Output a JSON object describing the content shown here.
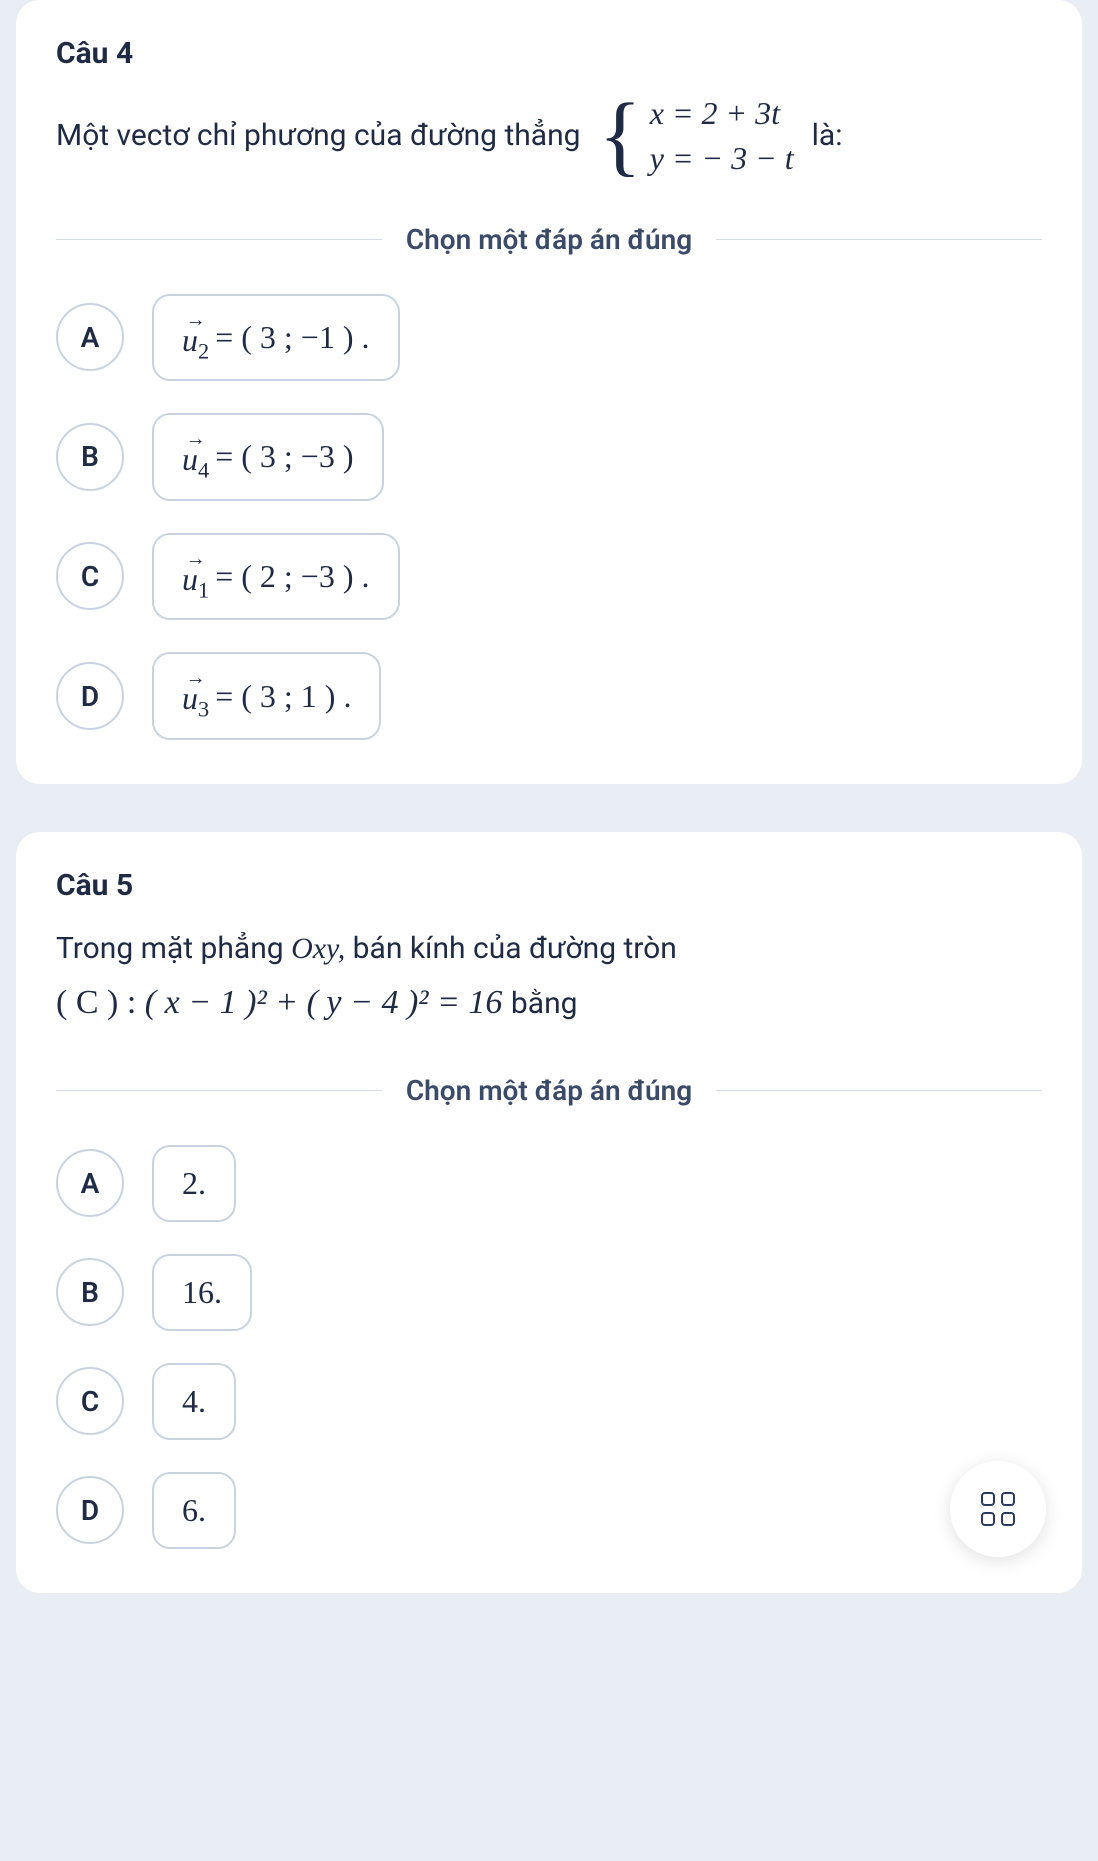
{
  "q4": {
    "title": "Câu 4",
    "prompt_before": "Một vectơ chỉ phương của đường thẳng",
    "system_row1": "x = 2 + 3t",
    "system_row2": "y = − 3 − t",
    "prompt_after": "là:",
    "divider": "Chọn một đáp án đúng",
    "options": [
      {
        "letter": "A",
        "vec_sub": "2",
        "value": "= ( 3 ; −1 ) ."
      },
      {
        "letter": "B",
        "vec_sub": "4",
        "value": "= ( 3 ; −3 )"
      },
      {
        "letter": "C",
        "vec_sub": "1",
        "value": "= ( 2 ; −3 ) ."
      },
      {
        "letter": "D",
        "vec_sub": "3",
        "value": "= ( 3 ;  1 ) ."
      }
    ]
  },
  "q5": {
    "title": "Câu 5",
    "line1_a": "Trong mặt phẳng ",
    "line1_b": "Oxy,",
    "line1_c": " bán kính của đường tròn",
    "eq_label": "( C ) : ",
    "eq": "( x − 1 )² + ( y − 4 )² = 16",
    "eq_tail": " bằng",
    "divider": "Chọn một đáp án đúng",
    "options": [
      {
        "letter": "A",
        "value": "2."
      },
      {
        "letter": "B",
        "value": "16."
      },
      {
        "letter": "C",
        "value": "4."
      },
      {
        "letter": "D",
        "value": "6."
      }
    ]
  },
  "colors": {
    "page_bg": "#e8eef4",
    "card_bg": "#ffffff",
    "text": "#1f2a44",
    "border": "#c9d3e0",
    "divider": "#d7dde6"
  }
}
